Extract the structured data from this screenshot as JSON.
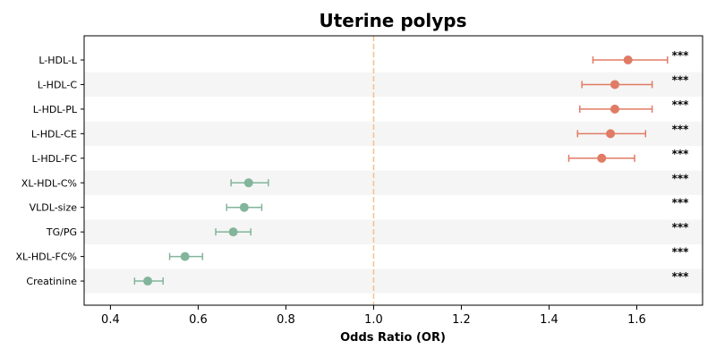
{
  "chart_data": {
    "type": "forest",
    "title": "Uterine polyps",
    "xlabel": "Odds Ratio (OR)",
    "xlim": [
      0.34,
      1.75
    ],
    "xticks": [
      0.4,
      0.6,
      0.8,
      1.0,
      1.2,
      1.4,
      1.6
    ],
    "xtick_labels": [
      "0.4",
      "0.6",
      "0.8",
      "1.0",
      "1.2",
      "1.4",
      "1.6"
    ],
    "reference_line": 1.0,
    "grid": false,
    "row_banding": true,
    "colors": {
      "risk": "#e07b65",
      "protective": "#82b59b",
      "reference": "#f5c08a",
      "band": "#f5f5f5"
    },
    "categories": [
      "L-HDL-L",
      "L-HDL-C",
      "L-HDL-PL",
      "L-HDL-CE",
      "L-HDL-FC",
      "XL-HDL-C%",
      "VLDL-size",
      "TG/PG",
      "XL-HDL-FC%",
      "Creatinine"
    ],
    "points": [
      {
        "label": "L-HDL-L",
        "or": 1.58,
        "ci_low": 1.5,
        "ci_high": 1.67,
        "group": "risk",
        "significance": "***"
      },
      {
        "label": "L-HDL-C",
        "or": 1.55,
        "ci_low": 1.475,
        "ci_high": 1.635,
        "group": "risk",
        "significance": "***"
      },
      {
        "label": "L-HDL-PL",
        "or": 1.55,
        "ci_low": 1.47,
        "ci_high": 1.635,
        "group": "risk",
        "significance": "***"
      },
      {
        "label": "L-HDL-CE",
        "or": 1.54,
        "ci_low": 1.465,
        "ci_high": 1.62,
        "group": "risk",
        "significance": "***"
      },
      {
        "label": "L-HDL-FC",
        "or": 1.52,
        "ci_low": 1.445,
        "ci_high": 1.595,
        "group": "risk",
        "significance": "***"
      },
      {
        "label": "XL-HDL-C%",
        "or": 0.715,
        "ci_low": 0.675,
        "ci_high": 0.76,
        "group": "protective",
        "significance": "***"
      },
      {
        "label": "VLDL-size",
        "or": 0.705,
        "ci_low": 0.665,
        "ci_high": 0.745,
        "group": "protective",
        "significance": "***"
      },
      {
        "label": "TG/PG",
        "or": 0.68,
        "ci_low": 0.64,
        "ci_high": 0.72,
        "group": "protective",
        "significance": "***"
      },
      {
        "label": "XL-HDL-FC%",
        "or": 0.57,
        "ci_low": 0.535,
        "ci_high": 0.61,
        "group": "protective",
        "significance": "***"
      },
      {
        "label": "Creatinine",
        "or": 0.485,
        "ci_low": 0.455,
        "ci_high": 0.52,
        "group": "protective",
        "significance": "***"
      }
    ]
  }
}
